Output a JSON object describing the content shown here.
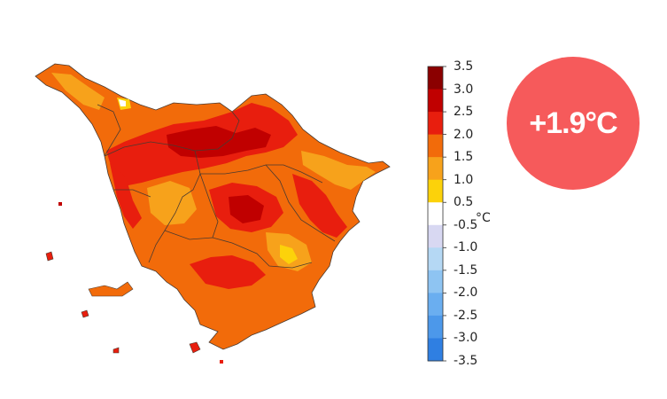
{
  "legend": {
    "unit": "°C",
    "ticks": [
      "3.5",
      "3.0",
      "2.5",
      "2.0",
      "1.5",
      "1.0",
      "0.5",
      "-0.5",
      "-1.0",
      "-1.5",
      "-2.0",
      "-2.5",
      "-3.0",
      "-3.5"
    ],
    "bins": [
      {
        "from": 3.0,
        "to": 3.5,
        "color": "#8b0000"
      },
      {
        "from": 2.5,
        "to": 3.0,
        "color": "#c00000"
      },
      {
        "from": 2.0,
        "to": 2.5,
        "color": "#e81e0e"
      },
      {
        "from": 1.5,
        "to": 2.0,
        "color": "#f26b0a"
      },
      {
        "from": 1.0,
        "to": 1.5,
        "color": "#f7a21b"
      },
      {
        "from": 0.5,
        "to": 1.0,
        "color": "#fcd20a"
      },
      {
        "from": -0.5,
        "to": 0.5,
        "color": "#ffffff"
      },
      {
        "from": -1.0,
        "to": -0.5,
        "color": "#d8d8f2"
      },
      {
        "from": -1.5,
        "to": -1.0,
        "color": "#b5d8f4"
      },
      {
        "from": -2.0,
        "to": -1.5,
        "color": "#8ec4f2"
      },
      {
        "from": -2.5,
        "to": -2.0,
        "color": "#6aaef0"
      },
      {
        "from": -3.0,
        "to": -2.5,
        "color": "#4c98ea"
      },
      {
        "from": -3.5,
        "to": -3.0,
        "color": "#2f7fe2"
      }
    ]
  },
  "badge": {
    "value": "+1.9°C",
    "color": "#f65a5b"
  },
  "map_colors": {
    "base": "#f26b0a",
    "warm": "#e81e0e",
    "hot": "#c00000",
    "mild": "#f7a21b",
    "cool": "#fcd20a",
    "border": "#4a3a30"
  }
}
